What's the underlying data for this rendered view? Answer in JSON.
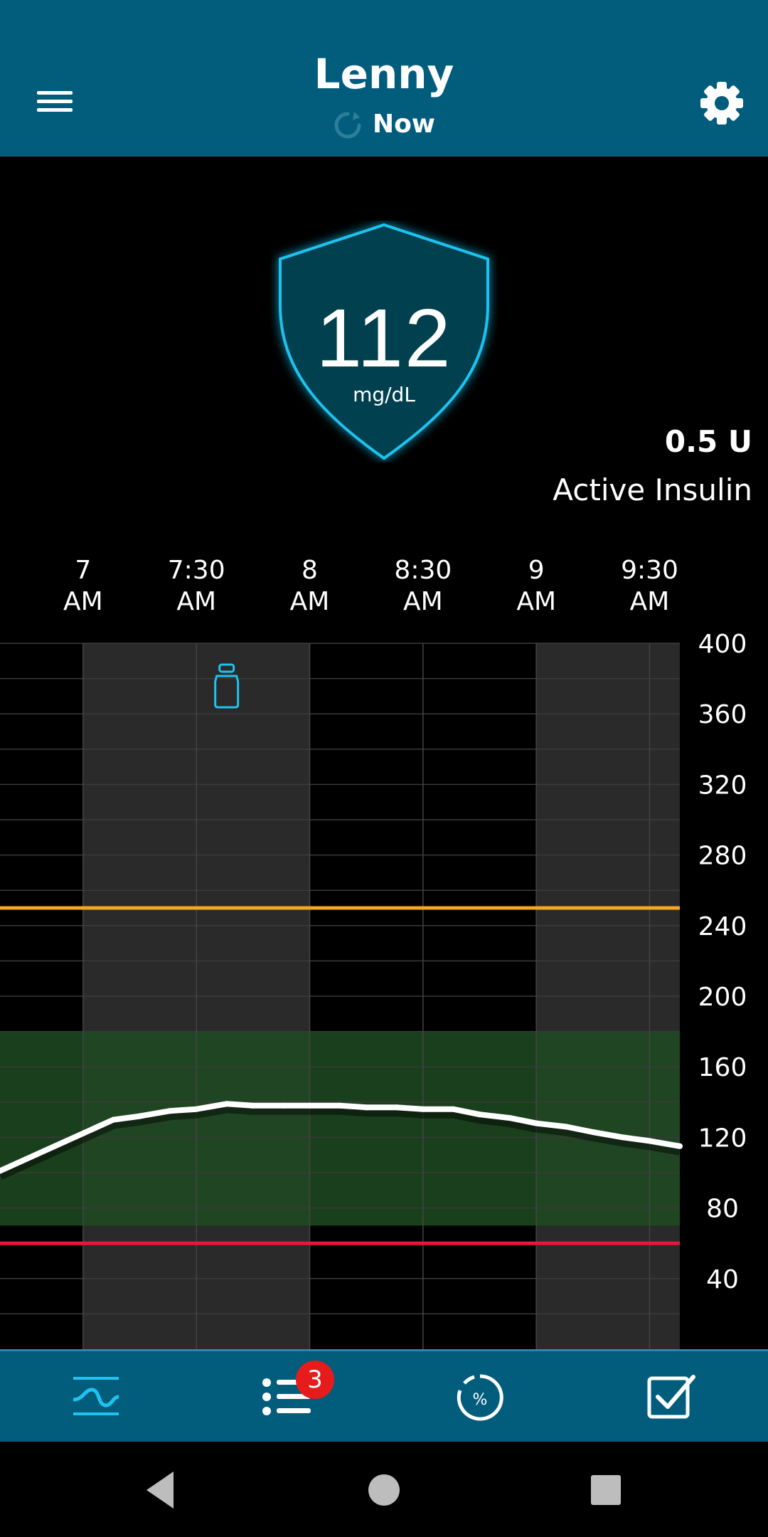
{
  "header": {
    "title": "Lenny",
    "status": "Now"
  },
  "glucose": {
    "value": "112",
    "unit": "mg/dL"
  },
  "active_insulin": {
    "amount": "0.5 U",
    "label": "Active Insulin"
  },
  "nav": {
    "badge_count": "3"
  },
  "colors": {
    "header": "#025d7c",
    "accent": "#1fc3f0",
    "high_threshold": "#f5a623",
    "low_threshold": "#e8163e",
    "target_range": "#1f4a22"
  },
  "icons": [
    "menu-icon",
    "refresh-icon",
    "gear-icon",
    "insulin-vial-icon",
    "trend-graph-icon",
    "list-icon",
    "percent-gauge-icon",
    "checkbox-icon",
    "back-icon",
    "home-icon",
    "recents-icon"
  ],
  "chart_data": {
    "type": "line",
    "x_tick_labels": [
      [
        "7",
        "AM"
      ],
      [
        "7:30",
        "AM"
      ],
      [
        "8",
        "AM"
      ],
      [
        "8:30",
        "AM"
      ],
      [
        "9",
        "AM"
      ],
      [
        "9:30",
        "AM"
      ]
    ],
    "x_ticks_minutes": [
      420,
      450,
      480,
      510,
      540,
      570
    ],
    "x_range_minutes": [
      398,
      578
    ],
    "y_ticks": [
      400,
      360,
      320,
      280,
      240,
      200,
      160,
      120,
      80,
      40
    ],
    "ylim": [
      0,
      400
    ],
    "high_threshold": 250,
    "low_threshold": 60,
    "target_range": [
      70,
      180
    ],
    "shaded_hour_bands": [
      [
        420,
        480
      ],
      [
        540,
        578
      ]
    ],
    "series": [
      {
        "x": [
          398,
          428,
          435,
          443,
          450,
          458,
          465,
          473,
          480,
          488,
          495,
          503,
          510,
          518,
          525,
          533,
          540,
          548,
          555,
          563,
          570,
          578
        ],
        "y": [
          101,
          130,
          132,
          135,
          136,
          139,
          138,
          138,
          138,
          138,
          137,
          137,
          136,
          136,
          133,
          131,
          128,
          126,
          123,
          120,
          118,
          115
        ]
      }
    ],
    "events": [
      {
        "type": "insulin",
        "x": 458
      }
    ]
  }
}
